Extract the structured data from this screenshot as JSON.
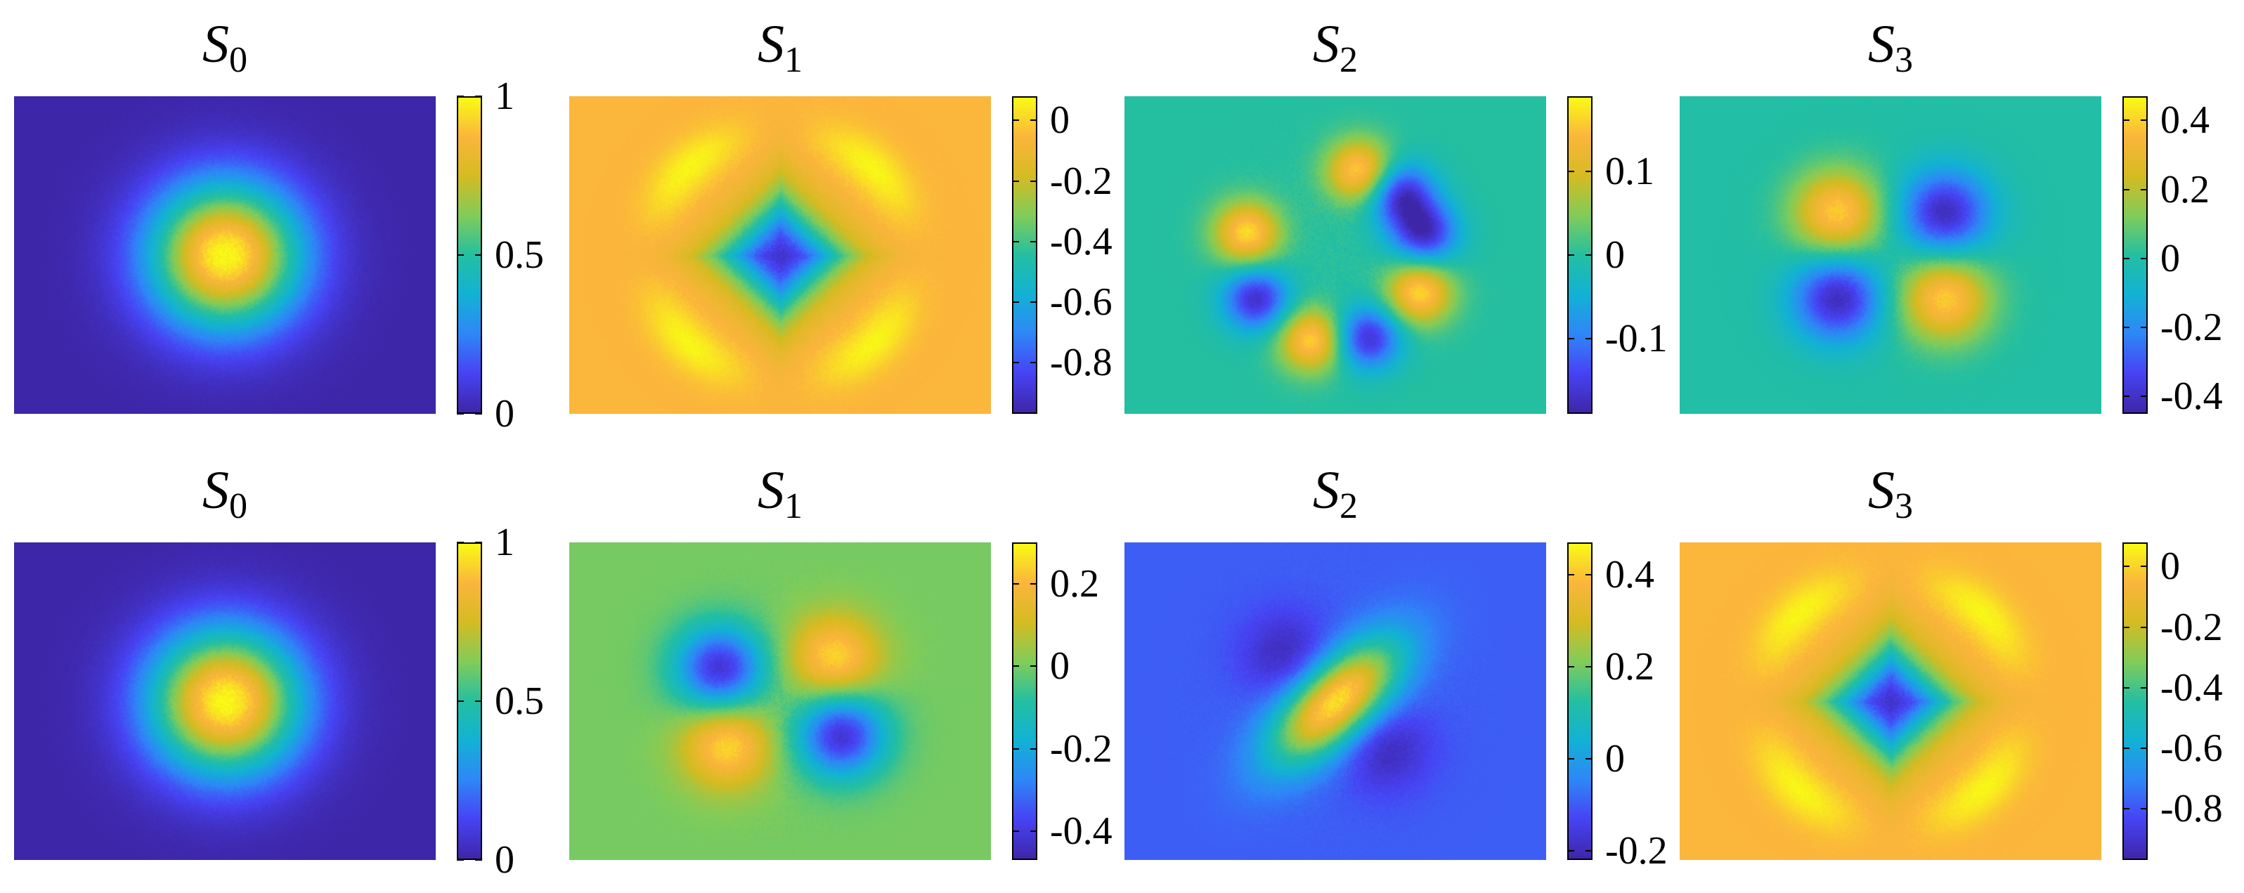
{
  "colormap": [
    "#3e26a8",
    "#4743f4",
    "#2e87f7",
    "#12b2d4",
    "#24bfa1",
    "#81cc59",
    "#d5bb21",
    "#fbb53c",
    "#f9fb15"
  ],
  "rows": [
    {
      "panels": [
        {
          "title": {
            "base": "S",
            "sub": "0"
          },
          "pattern": "gaussian",
          "background": 0.0,
          "lobes": [],
          "colorbar": {
            "min": 0,
            "max": 1,
            "ticks": [
              {
                "value": 0,
                "label": "0"
              },
              {
                "value": 0.5,
                "label": "0.5"
              },
              {
                "value": 1,
                "label": "1"
              }
            ]
          }
        },
        {
          "title": {
            "base": "S",
            "sub": "1"
          },
          "pattern": "diamond",
          "background": -0.05,
          "center_value": -0.9,
          "lobes": [],
          "colorbar": {
            "min": -0.97,
            "max": 0.08,
            "ticks": [
              {
                "value": 0,
                "label": "0"
              },
              {
                "value": -0.2,
                "label": "-0.2"
              },
              {
                "value": -0.4,
                "label": "-0.4"
              },
              {
                "value": -0.6,
                "label": "-0.6"
              },
              {
                "value": -0.8,
                "label": "-0.8"
              }
            ]
          }
        },
        {
          "title": {
            "base": "S",
            "sub": "2"
          },
          "pattern": "lobes",
          "background": 0.0,
          "lobes": [
            {
              "angle": -45,
              "value": -0.17
            },
            {
              "angle": -75,
              "value": 0.17
            },
            {
              "angle": -15,
              "value": -0.17
            },
            {
              "angle": 25,
              "value": 0.17
            },
            {
              "angle": 70,
              "value": -0.17
            },
            {
              "angle": 105,
              "value": 0.17
            },
            {
              "angle": 150,
              "value": -0.17
            },
            {
              "angle": 195,
              "value": 0.17
            }
          ],
          "colorbar": {
            "min": -0.19,
            "max": 0.19,
            "ticks": [
              {
                "value": 0.1,
                "label": "0.1"
              },
              {
                "value": 0,
                "label": "0"
              },
              {
                "value": -0.1,
                "label": "-0.1"
              }
            ]
          }
        },
        {
          "title": {
            "base": "S",
            "sub": "3"
          },
          "pattern": "lobes",
          "background": 0.0,
          "lobes": [
            {
              "angle": -140,
              "value": 0.4
            },
            {
              "angle": -40,
              "value": -0.42
            },
            {
              "angle": 40,
              "value": 0.4
            },
            {
              "angle": 140,
              "value": -0.42
            }
          ],
          "colorbar": {
            "min": -0.45,
            "max": 0.47,
            "ticks": [
              {
                "value": 0.4,
                "label": "0.4"
              },
              {
                "value": 0.2,
                "label": "0.2"
              },
              {
                "value": 0,
                "label": "0"
              },
              {
                "value": -0.2,
                "label": "-0.2"
              },
              {
                "value": -0.4,
                "label": "-0.4"
              }
            ]
          }
        }
      ]
    },
    {
      "panels": [
        {
          "title": {
            "base": "S",
            "sub": "0"
          },
          "pattern": "gaussian",
          "background": 0.0,
          "lobes": [],
          "colorbar": {
            "min": 0,
            "max": 1,
            "ticks": [
              {
                "value": 0,
                "label": "0"
              },
              {
                "value": 0.5,
                "label": "0.5"
              },
              {
                "value": 1,
                "label": "1"
              }
            ]
          }
        },
        {
          "title": {
            "base": "S",
            "sub": "1"
          },
          "pattern": "lobes",
          "background": 0.0,
          "lobes": [
            {
              "angle": -150,
              "value": -0.42
            },
            {
              "angle": -40,
              "value": 0.26
            },
            {
              "angle": 30,
              "value": -0.42
            },
            {
              "angle": 140,
              "value": 0.26
            }
          ],
          "colorbar": {
            "min": -0.47,
            "max": 0.3,
            "ticks": [
              {
                "value": 0.2,
                "label": "0.2"
              },
              {
                "value": 0,
                "label": "0"
              },
              {
                "value": -0.2,
                "label": "-0.2"
              },
              {
                "value": -0.4,
                "label": "-0.4"
              }
            ]
          }
        },
        {
          "title": {
            "base": "S",
            "sub": "2"
          },
          "pattern": "band",
          "background": -0.1,
          "lobes": [
            {
              "angle": -135,
              "value": -0.2
            },
            {
              "angle": 45,
              "value": -0.2
            }
          ],
          "colorbar": {
            "min": -0.22,
            "max": 0.47,
            "ticks": [
              {
                "value": 0.4,
                "label": "0.4"
              },
              {
                "value": 0.2,
                "label": "0.2"
              },
              {
                "value": 0,
                "label": "0"
              },
              {
                "value": -0.2,
                "label": "-0.2"
              }
            ]
          }
        },
        {
          "title": {
            "base": "S",
            "sub": "3"
          },
          "pattern": "diamond",
          "background": -0.05,
          "center_value": -0.9,
          "lobes": [],
          "colorbar": {
            "min": -0.97,
            "max": 0.08,
            "ticks": [
              {
                "value": 0,
                "label": "0"
              },
              {
                "value": -0.2,
                "label": "-0.2"
              },
              {
                "value": -0.4,
                "label": "-0.4"
              },
              {
                "value": -0.6,
                "label": "-0.6"
              },
              {
                "value": -0.8,
                "label": "-0.8"
              }
            ]
          }
        }
      ]
    }
  ]
}
